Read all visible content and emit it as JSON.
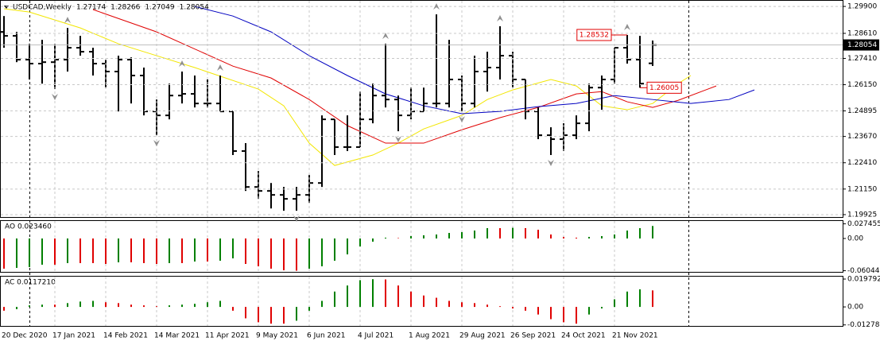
{
  "chart_data": [
    {
      "type": "ohlc",
      "title": "USDCAD,Weekly",
      "categories": [
        "20 Dec 2020",
        null,
        null,
        null,
        "17 Jan 2021",
        null,
        null,
        null,
        "14 Feb 2021",
        null,
        null,
        null,
        "14 Mar 2021",
        null,
        null,
        null,
        "11 Apr 2021",
        null,
        null,
        null,
        "9 May 2021",
        null,
        null,
        null,
        "6 Jun 2021",
        null,
        null,
        null,
        "4 Jul 2021",
        null,
        null,
        null,
        "1 Aug 2021",
        null,
        null,
        null,
        "29 Aug 2021",
        null,
        null,
        null,
        "26 Sep 2021",
        null,
        null,
        null,
        "24 Oct 2021",
        null,
        null,
        null,
        "21 Nov 2021",
        null,
        null,
        null
      ],
      "open": [
        1.2868,
        1.2849,
        1.2735,
        1.2716,
        1.2723,
        1.2735,
        1.2792,
        1.2773,
        1.2716,
        1.2678,
        1.2735,
        1.2659,
        1.2487,
        1.2468,
        1.2563,
        1.2571,
        1.2525,
        1.2525,
        1.2487,
        1.2297,
        1.2125,
        1.2106,
        1.2087,
        1.2068,
        1.2087,
        1.2144,
        1.2449,
        1.2316,
        1.2316,
        1.2449,
        1.2563,
        1.2544,
        1.2468,
        1.2487,
        1.2525,
        1.2525,
        1.264,
        1.2525,
        1.2678,
        1.2697,
        1.2754,
        1.264,
        1.2487,
        1.2373,
        1.2354,
        1.2373,
        1.243,
        1.2601,
        1.264,
        1.2792,
        1.2735,
        1.27174
      ],
      "high": [
        1.2944,
        1.2868,
        1.2811,
        1.283,
        1.2811,
        1.2887,
        1.2849,
        1.2792,
        1.2735,
        1.2754,
        1.2746,
        1.2697,
        1.2544,
        1.262,
        1.2678,
        1.2659,
        1.264,
        1.2659,
        1.2487,
        1.2335,
        1.2201,
        1.2144,
        1.2125,
        1.2125,
        1.2182,
        1.2468,
        1.2449,
        1.2468,
        1.2582,
        1.262,
        1.2811,
        1.2563,
        1.2601,
        1.2601,
        1.2952,
        1.283,
        1.2659,
        1.2754,
        1.2773,
        1.2895,
        1.2773,
        1.264,
        1.2506,
        1.2411,
        1.243,
        1.2468,
        1.262,
        1.2659,
        1.2792,
        1.28532,
        1.2849,
        1.28266
      ],
      "low": [
        1.2792,
        1.2723,
        1.264,
        1.262,
        1.2594,
        1.2678,
        1.2754,
        1.2659,
        1.2601,
        1.2487,
        1.2525,
        1.2468,
        1.2373,
        1.2449,
        1.2525,
        1.2506,
        1.2506,
        1.2487,
        1.2278,
        1.2106,
        1.2068,
        1.2022,
        1.2011,
        1.2011,
        1.2049,
        1.2125,
        1.2278,
        1.2297,
        1.2316,
        1.243,
        1.2506,
        1.2392,
        1.2449,
        1.2487,
        1.2506,
        1.2506,
        1.2487,
        1.2506,
        1.2582,
        1.264,
        1.2601,
        1.2449,
        1.2354,
        1.2278,
        1.2297,
        1.2354,
        1.2392,
        1.2495,
        1.262,
        1.2716,
        1.26005,
        1.27049
      ],
      "close": [
        1.2849,
        1.2735,
        1.2716,
        1.2723,
        1.2735,
        1.2792,
        1.2773,
        1.2716,
        1.2678,
        1.2735,
        1.2659,
        1.2487,
        1.2468,
        1.2563,
        1.2571,
        1.2525,
        1.2525,
        1.2487,
        1.2297,
        1.2125,
        1.2106,
        1.2087,
        1.2068,
        1.2087,
        1.2144,
        1.2449,
        1.2316,
        1.2316,
        1.2449,
        1.2563,
        1.2544,
        1.2468,
        1.2487,
        1.2525,
        1.2525,
        1.264,
        1.2525,
        1.2678,
        1.2697,
        1.2754,
        1.264,
        1.2487,
        1.2373,
        1.2354,
        1.2373,
        1.243,
        1.2601,
        1.264,
        1.2792,
        1.2735,
        1.262,
        1.28054
      ],
      "color": "#000000",
      "ylim": [
        1.1981,
        1.3017
      ],
      "yticks": [
        {
          "value": 1.299,
          "label": "1.29900"
        },
        {
          "value": 1.2861,
          "label": "1.28610"
        },
        {
          "value": 1.2741,
          "label": "1.27410"
        },
        {
          "value": 1.2615,
          "label": "1.26150"
        },
        1.24895,
        {
          "value": 1.2367,
          "label": "1.23670"
        },
        {
          "value": 1.2241,
          "label": "1.22410"
        },
        {
          "value": 1.2115,
          "label": "1.21150"
        },
        1.19925
      ],
      "grid": true,
      "lines": [
        {
          "color": "#f2e600",
          "x": [
            0,
            2,
            6,
            9,
            12,
            15,
            20,
            22,
            24,
            26,
            29,
            31,
            33,
            36,
            38,
            40,
            43,
            45,
            47,
            49,
            51,
            53,
            54
          ],
          "values": [
            1.2979,
            1.2963,
            1.2887,
            1.2811,
            1.2754,
            1.2697,
            1.2594,
            1.2514,
            1.2335,
            1.2228,
            1.2278,
            1.2335,
            1.2403,
            1.2468,
            1.2544,
            1.259,
            1.264,
            1.2609,
            1.2514,
            1.2495,
            1.2525,
            1.262,
            1.2659
          ]
        },
        {
          "color": "#e00000",
          "x": [
            7,
            12,
            18,
            21,
            24,
            27,
            30,
            33,
            36,
            39,
            42,
            45,
            47,
            49,
            51,
            53,
            56
          ],
          "values": [
            1.2975,
            1.2868,
            1.2704,
            1.2647,
            1.2544,
            1.2419,
            1.2335,
            1.2335,
            1.2399,
            1.2457,
            1.2506,
            1.2571,
            1.2582,
            1.2533,
            1.2506,
            1.254,
            1.2609
          ]
        },
        {
          "color": "#0000c0",
          "x": [
            15,
            18,
            21,
            24,
            27,
            30,
            33,
            36,
            39,
            42,
            45,
            48,
            51,
            54,
            57,
            59
          ],
          "values": [
            1.299,
            1.2944,
            1.2868,
            1.2754,
            1.2659,
            1.2571,
            1.2514,
            1.2476,
            1.2487,
            1.251,
            1.2525,
            1.2563,
            1.2544,
            1.2525,
            1.2544,
            1.259
          ]
        }
      ],
      "price_labels": [
        1.28532,
        1.26005
      ],
      "price_label_color": "#e00000",
      "fractal_up": [
        5,
        14,
        17,
        30,
        34,
        39,
        49
      ],
      "fractal_down": [
        4,
        12,
        23,
        31,
        36,
        43
      ],
      "fractal_color": "#909090"
    },
    {
      "type": "histogram",
      "title": "AO 0.023460",
      "values": [
        -0.0566,
        -0.0551,
        -0.0536,
        -0.0492,
        -0.0492,
        -0.0462,
        -0.0462,
        -0.0462,
        -0.0477,
        -0.0447,
        -0.0447,
        -0.0462,
        -0.0477,
        -0.0462,
        -0.0462,
        -0.0432,
        -0.0432,
        -0.0417,
        -0.0373,
        -0.0477,
        -0.0522,
        -0.0566,
        -0.0596,
        -0.0604,
        -0.0566,
        -0.0522,
        -0.0417,
        -0.0298,
        -0.0149,
        -0.006,
        0.0015,
        0.0008,
        0.0045,
        0.006,
        0.0075,
        0.0104,
        0.0119,
        0.0149,
        0.0194,
        0.0194,
        0.02,
        0.0194,
        0.0164,
        0.0075,
        0.003,
        0.0015,
        0.003,
        0.0045,
        0.0075,
        0.0149,
        0.0194,
        0.02346
      ],
      "up_color": "#008000",
      "down_color": "#e00000",
      "ylim": [
        -0.0626,
        0.0328
      ],
      "yticks": [
        0.027455,
        {
          "value": 0,
          "label": "0.00"
        },
        {
          "value": -0.06044,
          "label": "-0.060440"
        }
      ]
    },
    {
      "type": "histogram",
      "title": "AC 0.0117210",
      "values": [
        -0.0027,
        -0.0016,
        0.0011,
        0.0016,
        0.0016,
        0.0027,
        0.0038,
        0.0043,
        0.0033,
        0.0027,
        0.0016,
        0.0011,
        0.0005,
        0.0011,
        0.0016,
        0.0022,
        0.0033,
        0.0043,
        -0.0027,
        -0.0081,
        -0.0109,
        -0.0119,
        -0.0119,
        -0.0098,
        -0.0027,
        0.0043,
        0.0109,
        0.0152,
        0.019,
        0.0197,
        0.0195,
        0.0152,
        0.0109,
        0.0081,
        0.0065,
        0.0043,
        0.0033,
        0.0027,
        0.0016,
        0.0005,
        -0.0011,
        -0.0027,
        -0.0054,
        -0.0087,
        -0.0109,
        -0.0119,
        -0.0054,
        -0.0011,
        0.0054,
        0.0109,
        0.0125,
        0.011721
      ],
      "up_color": "#008000",
      "down_color": "#e00000",
      "ylim": [
        -0.0135,
        0.0215
      ],
      "yticks": [
        0.0197922,
        {
          "value": 0,
          "label": "0.00"
        },
        {
          "value": -0.01278,
          "label": "-0.012780"
        }
      ]
    }
  ]
}
